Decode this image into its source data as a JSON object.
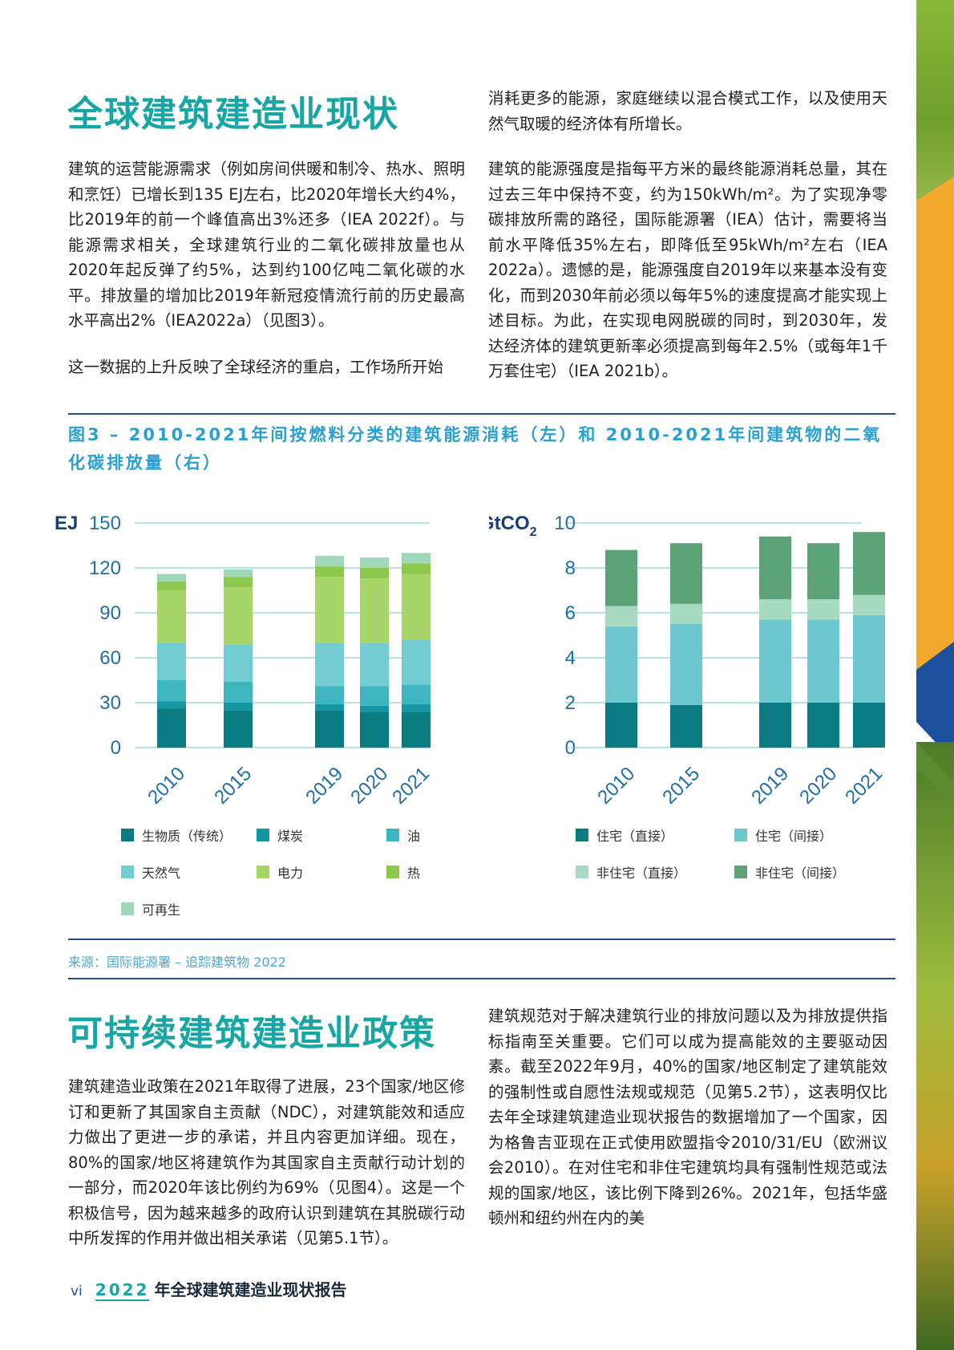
{
  "section1": {
    "title": "全球建筑建造业现状",
    "left": [
      "建筑的运营能源需求（例如房间供暖和制冷、热水、照明和烹饪）已增长到135 EJ左右，比2020年增长大约4%，比2019年的前一个峰值高出3%还多（IEA 2022f）。与能源需求相关，全球建筑行业的二氧化碳排放量也从2020年起反弹了约5%，达到约100亿吨二氧化碳的水平。排放量的增加比2019年新冠疫情流行前的历史最高水平高出2%（IEA2022a）（见图3）。",
      "这一数据的上升反映了全球经济的重启，工作场所开始"
    ],
    "right": [
      "消耗更多的能源，家庭继续以混合模式工作，以及使用天然气取暖的经济体有所增长。",
      "建筑的能源强度是指每平方米的最终能源消耗总量，其在过去三年中保持不变，约为150kWh/m²。为了实现净零碳排放所需的路径，国际能源署（IEA）估计，需要将当前水平降低35%左右，即降低至95kWh/m²左右（IEA 2022a）。遗憾的是，能源强度自2019年以来基本没有变化，而到2030年前必须以每年5%的速度提高才能实现上述目标。为此，在实现电网脱碳的同时，到2030年，发达经济体的建筑更新率必须提高到每年2.5%（或每年1千万套住宅）（IEA 2021b）。"
    ]
  },
  "figure": {
    "title": "图3 – 2010-2021年间按燃料分类的建筑能源消耗（左）和 2010-2021年间建筑物的二氧化碳排放量（右）",
    "source": "来源：国际能源署 – 追踪建筑物 2022"
  },
  "chart_data": [
    {
      "type": "bar",
      "stacked": true,
      "ylabel": "EJ",
      "ylim": [
        0,
        150
      ],
      "yticks": [
        "0",
        "30",
        "60",
        "90",
        "120",
        "150"
      ],
      "categories": [
        "2010",
        "2015",
        "2019",
        "2020",
        "2021"
      ],
      "colors": [
        "#0a7b80",
        "#1497a3",
        "#3eb5bf",
        "#72ccd1",
        "#a8d56a",
        "#8cc84b",
        "#9fd8b8"
      ],
      "series": [
        {
          "name": "生物质（传统）",
          "values": [
            26,
            25,
            25,
            24,
            24
          ]
        },
        {
          "name": "煤炭",
          "values": [
            5,
            5,
            4,
            4,
            5
          ]
        },
        {
          "name": "油",
          "values": [
            14,
            14,
            12,
            13,
            13
          ]
        },
        {
          "name": "天然气",
          "values": [
            25,
            25,
            29,
            29,
            30
          ]
        },
        {
          "name": "电力",
          "values": [
            35,
            38,
            44,
            43,
            44
          ]
        },
        {
          "name": "热",
          "values": [
            6,
            7,
            7,
            7,
            7
          ]
        },
        {
          "name": "可再生",
          "values": [
            5,
            5,
            7,
            7,
            7
          ]
        }
      ]
    },
    {
      "type": "bar",
      "stacked": true,
      "ylabel": "GtCO",
      "ylabel_sub": "2",
      "ylim": [
        0,
        10
      ],
      "yticks": [
        "0",
        "2",
        "4",
        "6",
        "8",
        "10"
      ],
      "categories": [
        "2010",
        "2015",
        "2019",
        "2020",
        "2021"
      ],
      "colors": [
        "#0a7b80",
        "#6cc8ce",
        "#a7dbc1",
        "#5ca37a"
      ],
      "series": [
        {
          "name": "住宅（直接）",
          "values": [
            2.0,
            1.9,
            2.0,
            2.0,
            2.0
          ]
        },
        {
          "name": "住宅（间接）",
          "values": [
            3.4,
            3.6,
            3.7,
            3.7,
            3.9
          ]
        },
        {
          "name": "非住宅（直接）",
          "values": [
            0.9,
            0.9,
            0.9,
            0.9,
            0.9
          ]
        },
        {
          "name": "非住宅（间接）",
          "values": [
            2.5,
            2.7,
            2.8,
            2.5,
            2.8
          ]
        }
      ]
    }
  ],
  "section2": {
    "title": "可持续建筑建造业政策",
    "left": "建筑建造业政策在2021年取得了进展，23个国家/地区修订和更新了其国家自主贡献（NDC），对建筑能效和适应力做出了更进一步的承诺，并且内容更加详细。现在，80%的国家/地区将建筑作为其国家自主贡献行动计划的一部分，而2020年该比例约为69%（见图4）。这是一个积极信号，因为越来越多的政府认识到建筑在其脱碳行动中所发挥的作用并做出相关承诺（见第5.1节）。",
    "right": "建筑规范对于解决建筑行业的排放问题以及为排放提供指标指南至关重要。它们可以成为提高能效的主要驱动因素。截至2022年9月，40%的国家/地区制定了建筑能效的强制性或自愿性法规或规范（见第5.2节），这表明仅比去年全球建筑建造业现状报告的数据增加了一个国家，因为格鲁吉亚现在正式使用欧盟指令2010/31/EU（欧洲议会2010）。在对住宅和非住宅建筑均具有强制性规范或法规的国家/地区，该比例下降到26%。2021年，包括华盛顿州和纽约州在内的美"
  },
  "footer": {
    "page": "vi",
    "year": "2022",
    "title": "年全球建筑建造业现状报告"
  }
}
